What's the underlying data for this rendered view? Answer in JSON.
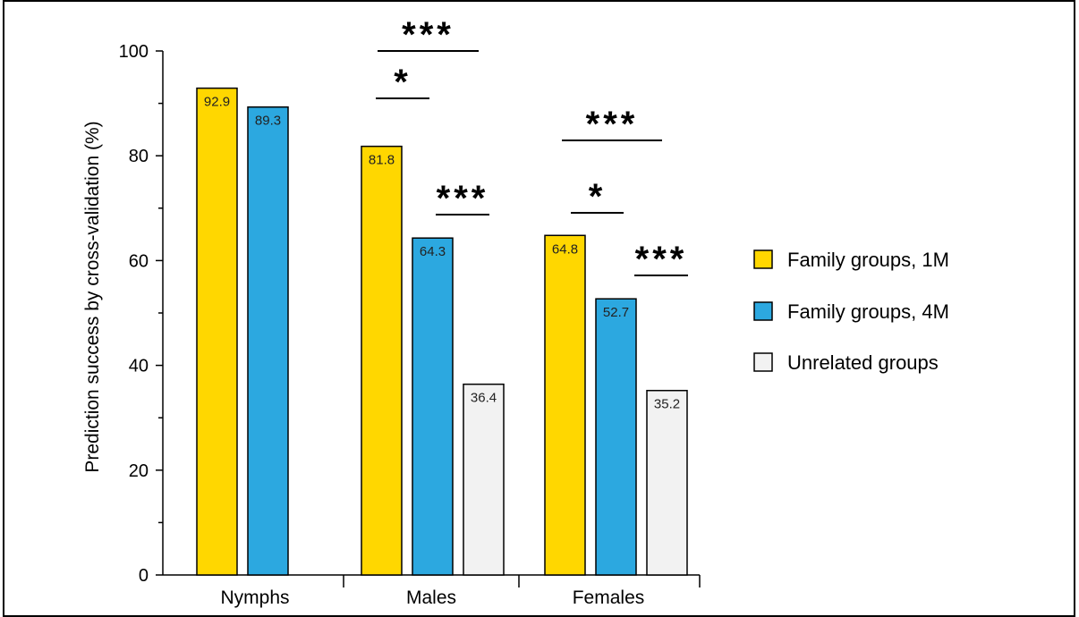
{
  "chart_data": {
    "type": "bar",
    "ylabel": "Prediction success by cross-validation (%)",
    "xlabel": "",
    "ylim": [
      0,
      100
    ],
    "yticks": [
      0,
      20,
      40,
      60,
      80,
      100
    ],
    "grid": false,
    "legend_placement": "right",
    "categories": [
      "Nymphs",
      "Males",
      "Females"
    ],
    "series": [
      {
        "name": "Family groups, 1M",
        "color": "#FFD700",
        "values": [
          92.9,
          81.8,
          64.8
        ],
        "labels": [
          "92.9",
          "81.8",
          "64.8"
        ]
      },
      {
        "name": "Family groups, 4M",
        "color": "#2CA8E0",
        "values": [
          89.3,
          64.3,
          52.7
        ],
        "labels": [
          "89.3",
          "64.3",
          "52.7"
        ]
      },
      {
        "name": "Unrelated groups",
        "color": "#F2F2F2",
        "values": [
          null,
          36.4,
          35.2
        ],
        "labels": [
          "",
          "36.4",
          "35.2"
        ]
      }
    ],
    "significance": [
      {
        "category": "Males",
        "from_series": 0,
        "to_series": 2,
        "label": "***"
      },
      {
        "category": "Males",
        "from_series": 0,
        "to_series": 1,
        "label": "*"
      },
      {
        "category": "Males",
        "from_series": 1,
        "to_series": 2,
        "label": "***"
      },
      {
        "category": "Females",
        "from_series": 0,
        "to_series": 2,
        "label": "***"
      },
      {
        "category": "Females",
        "from_series": 0,
        "to_series": 1,
        "label": "*"
      },
      {
        "category": "Females",
        "from_series": 1,
        "to_series": 2,
        "label": "***"
      }
    ]
  }
}
